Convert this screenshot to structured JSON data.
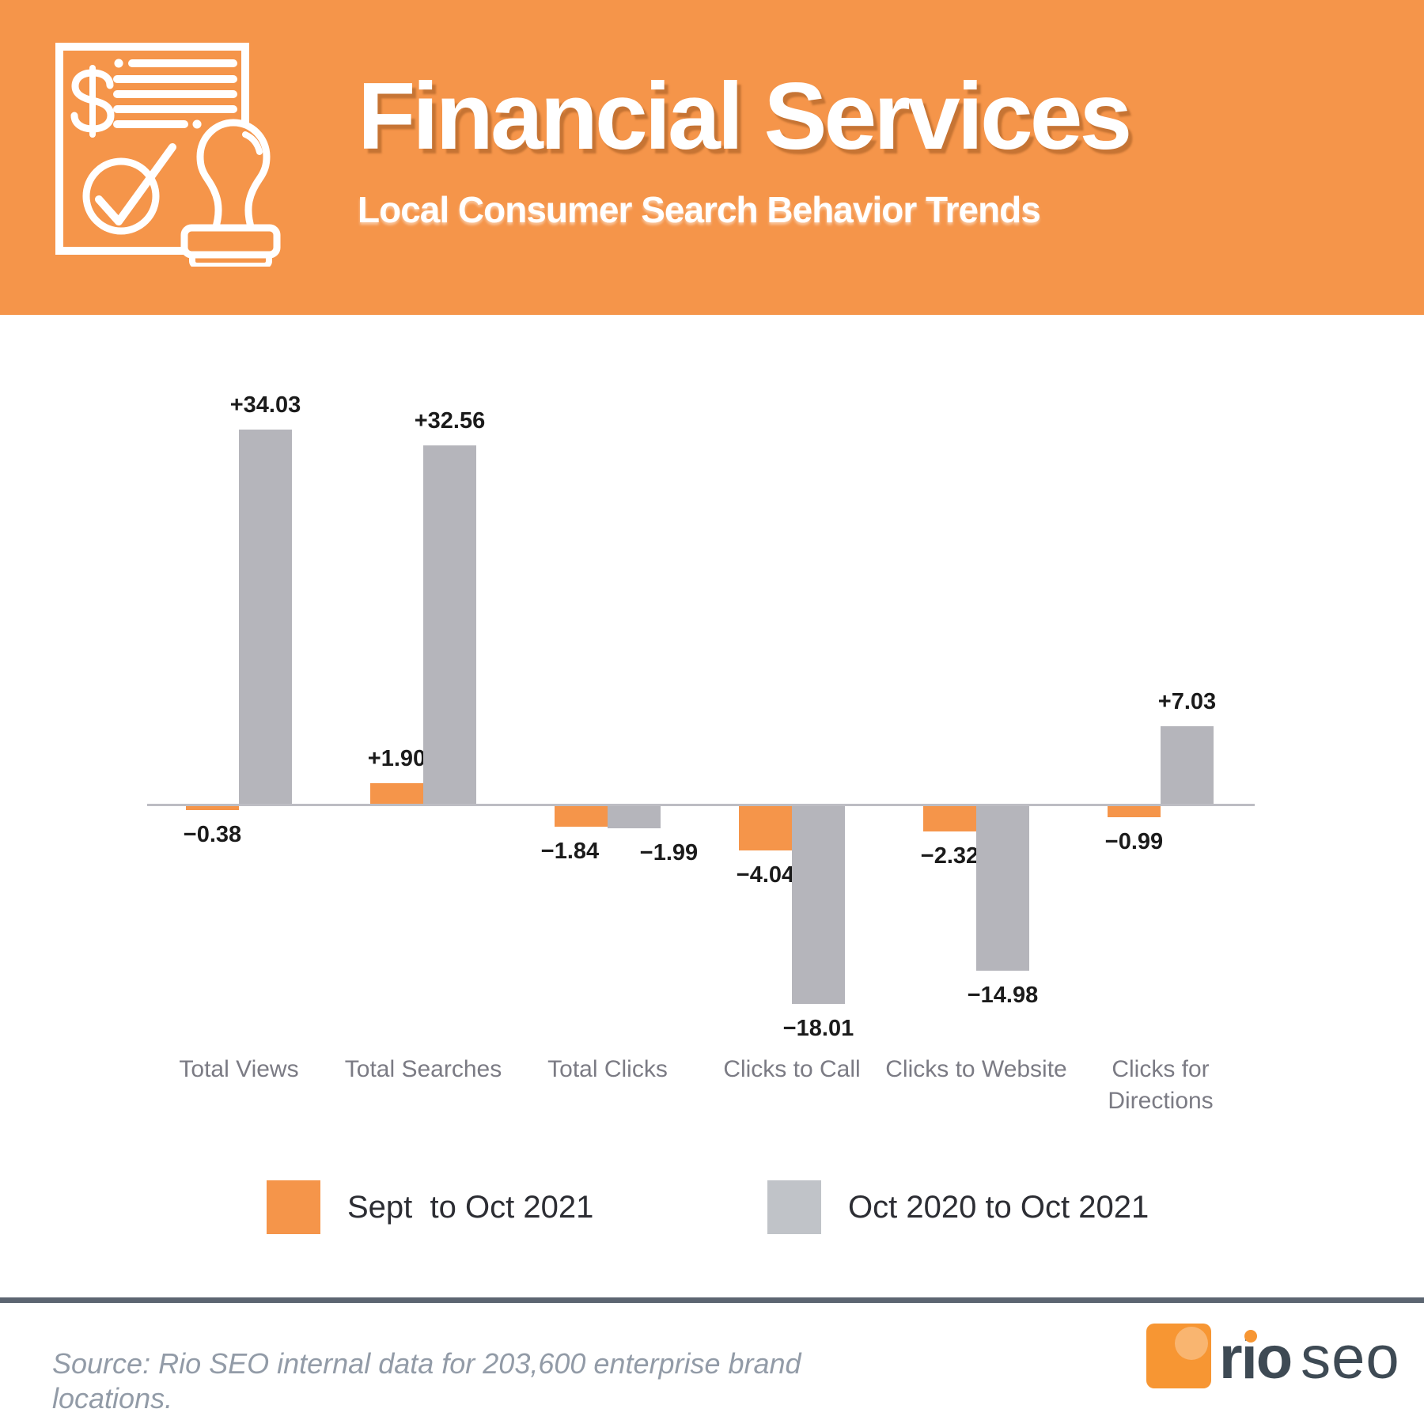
{
  "header": {
    "title": "Financial Services",
    "subtitle": "Local Consumer Search Behavior Trends",
    "icon": "financial-document-approved-stamp"
  },
  "colors": {
    "banner_orange": "#F5954A",
    "bar_orange": "#F5954A",
    "bar_gray": "#B5B5BB",
    "legend_gray": "#C0C3C8",
    "axis_line": "#BDBDC3",
    "value_label": "#1B1B1B",
    "category_label": "#7B7B84",
    "legend_text": "#2C2D33",
    "divider": "#5C6571",
    "source_text": "#929BA7",
    "logo_orange": "#F79633",
    "logo_text": "#3E4A54"
  },
  "chart_data": {
    "type": "bar",
    "categories": [
      "Total Views",
      "Total Searches",
      "Total Clicks",
      "Clicks to Call",
      "Clicks to Website",
      "Clicks for Directions"
    ],
    "series": [
      {
        "name": "Sept  to Oct 2021",
        "color": "#F5954A",
        "values": [
          -0.38,
          1.9,
          -1.84,
          -4.04,
          -2.32,
          -0.99
        ],
        "labels": [
          "−0.38",
          "+1.90",
          "−1.84",
          "−4.04",
          "−2.32",
          "−0.99"
        ]
      },
      {
        "name": "Oct 2020 to Oct 2021",
        "color": "#B5B5BB",
        "values": [
          34.03,
          32.56,
          -1.99,
          -18.01,
          -14.98,
          7.03
        ],
        "labels": [
          "+34.03",
          "+32.56",
          "−1.99",
          "−18.01",
          "−14.98",
          "+7.03"
        ]
      }
    ],
    "title": "Financial Services — Local Consumer Search Behavior Trends",
    "xlabel": "",
    "ylabel": "",
    "ylim": [
      -18.01,
      34.03
    ],
    "grid": false,
    "legend_position": "bottom"
  },
  "legend": {
    "items": [
      {
        "label": "Sept  to Oct 2021",
        "color": "#F5954A"
      },
      {
        "label": "Oct 2020 to Oct 2021",
        "color": "#C0C3C8"
      }
    ]
  },
  "footer": {
    "source": "Source: Rio SEO internal data for 203,600 enterprise brand locations.",
    "logo_text_bold": "rio",
    "logo_text_light": "seo"
  }
}
